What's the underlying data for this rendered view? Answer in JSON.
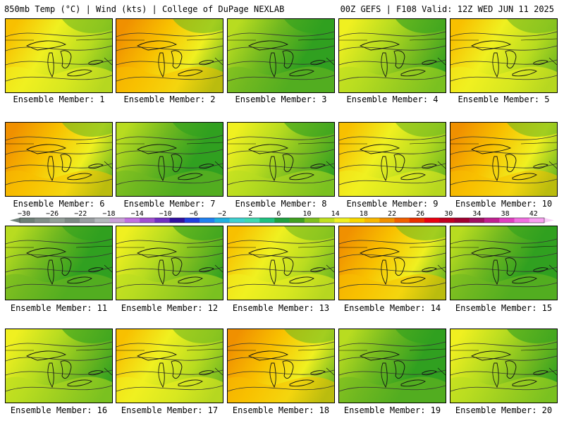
{
  "header": {
    "left": "850mb Temp (°C) | Wind (kts) | College of DuPage NEXLAB",
    "right": "00Z GEFS | F108 Valid: 12Z WED JUN 11 2025"
  },
  "members": [
    {
      "label": "Ensemble Member: 1"
    },
    {
      "label": "Ensemble Member: 2"
    },
    {
      "label": "Ensemble Member: 3"
    },
    {
      "label": "Ensemble Member: 4"
    },
    {
      "label": "Ensemble Member: 5"
    },
    {
      "label": "Ensemble Member: 6"
    },
    {
      "label": "Ensemble Member: 7"
    },
    {
      "label": "Ensemble Member: 8"
    },
    {
      "label": "Ensemble Member: 9"
    },
    {
      "label": "Ensemble Member: 10"
    },
    {
      "label": "Ensemble Member: 11"
    },
    {
      "label": "Ensemble Member: 12"
    },
    {
      "label": "Ensemble Member: 13"
    },
    {
      "label": "Ensemble Member: 14"
    },
    {
      "label": "Ensemble Member: 15"
    },
    {
      "label": "Ensemble Member: 16"
    },
    {
      "label": "Ensemble Member: 17"
    },
    {
      "label": "Ensemble Member: 18"
    },
    {
      "label": "Ensemble Member: 19"
    },
    {
      "label": "Ensemble Member: 20"
    }
  ],
  "colorbar": {
    "tick_labels": [
      "−30",
      "−26",
      "−22",
      "−18",
      "−14",
      "−10",
      "−6",
      "−2",
      "2",
      "6",
      "10",
      "14",
      "18",
      "22",
      "26",
      "30",
      "34",
      "38",
      "42"
    ],
    "colors": [
      "#6e7f77",
      "#818e88",
      "#939f99",
      "#7f8a86",
      "#9a9ea2",
      "#b4b8bc",
      "#c8a0d8",
      "#c070e0",
      "#a050d0",
      "#7030c0",
      "#3010a0",
      "#2040e0",
      "#2080f0",
      "#20b0e0",
      "#40d0d0",
      "#40d8b0",
      "#20c080",
      "#20a040",
      "#40a020",
      "#80c020",
      "#c0e020",
      "#f0f020",
      "#f8d800",
      "#f8b800",
      "#f09000",
      "#f06000",
      "#e83000",
      "#e80010",
      "#c00020",
      "#a00030",
      "#a01060",
      "#c02090",
      "#e040c0",
      "#f070e0",
      "#f8a0f0"
    ],
    "field_colors": {
      "green": "#30a020",
      "lightgreen": "#70b820",
      "yellowgreen": "#b8dc20",
      "yellow": "#f0f020",
      "orange": "#f8c000",
      "darkorange": "#f09000"
    }
  }
}
